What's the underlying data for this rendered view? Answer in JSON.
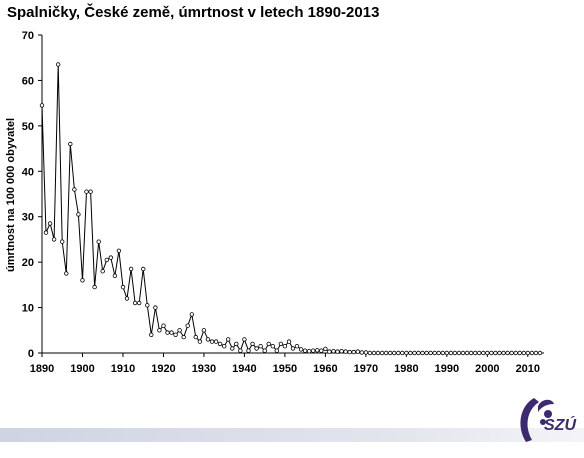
{
  "chart_data": {
    "type": "line",
    "title": "Spalničky, České země, úmrtnost v letech 1890-2013",
    "xlabel": "",
    "ylabel": "úmrtnost na 100 000 obyvatel",
    "xlim": [
      1890,
      2014
    ],
    "ylim": [
      0,
      70
    ],
    "x_ticks": [
      1890,
      1900,
      1910,
      1920,
      1930,
      1940,
      1950,
      1960,
      1970,
      1980,
      1990,
      2000,
      2010
    ],
    "y_ticks": [
      0,
      10,
      20,
      30,
      40,
      50,
      60,
      70
    ],
    "grid": false,
    "legend": "none",
    "line_color": "#000000",
    "marker": "open-circle",
    "series": [
      {
        "x": [
          1890,
          1891,
          1892,
          1893,
          1894,
          1895,
          1896,
          1897,
          1898,
          1899,
          1900,
          1901,
          1902,
          1903,
          1904,
          1905,
          1906,
          1907,
          1908,
          1909,
          1910,
          1911,
          1912,
          1913,
          1914,
          1915,
          1916,
          1917,
          1918,
          1919,
          1920,
          1921,
          1922,
          1923,
          1924,
          1925,
          1926,
          1927,
          1928,
          1929,
          1930,
          1931,
          1932,
          1933,
          1934,
          1935,
          1936,
          1937,
          1938,
          1939,
          1940,
          1941,
          1942,
          1943,
          1944,
          1945,
          1946,
          1947,
          1948,
          1949,
          1950,
          1951,
          1952,
          1953,
          1954,
          1955,
          1956,
          1957,
          1958,
          1959,
          1960,
          1961,
          1962,
          1963,
          1964,
          1965,
          1966,
          1967,
          1968,
          1969,
          1970,
          1971,
          1972,
          1973,
          1974,
          1975,
          1976,
          1977,
          1978,
          1979,
          1980,
          1981,
          1982,
          1983,
          1984,
          1985,
          1986,
          1987,
          1988,
          1989,
          1990,
          1991,
          1992,
          1993,
          1994,
          1995,
          1996,
          1997,
          1998,
          1999,
          2000,
          2001,
          2002,
          2003,
          2004,
          2005,
          2006,
          2007,
          2008,
          2009,
          2010,
          2011,
          2012,
          2013
        ],
        "values": [
          54.5,
          26.5,
          28.5,
          25.0,
          63.5,
          24.5,
          17.5,
          46.0,
          36.0,
          30.5,
          16.0,
          35.5,
          35.5,
          14.5,
          24.5,
          18.0,
          20.5,
          21.0,
          17.0,
          22.5,
          14.5,
          12.0,
          18.5,
          11.0,
          11.0,
          18.5,
          10.5,
          4.0,
          10.0,
          5.0,
          6.0,
          4.5,
          4.5,
          4.0,
          5.0,
          3.5,
          6.0,
          8.5,
          3.5,
          2.5,
          5.0,
          3.0,
          2.5,
          2.5,
          2.0,
          1.5,
          3.0,
          1.0,
          2.0,
          0.5,
          3.0,
          0.5,
          2.0,
          1.0,
          1.5,
          0.5,
          2.0,
          1.5,
          0.5,
          2.0,
          1.5,
          2.5,
          1.0,
          1.5,
          0.8,
          0.5,
          0.4,
          0.5,
          0.6,
          0.5,
          0.9,
          0.3,
          0.4,
          0.3,
          0.4,
          0.3,
          0.2,
          0.2,
          0.3,
          0.1,
          0.1,
          0.0,
          0.0,
          0.0,
          0.0,
          0.0,
          0.0,
          0.0,
          0.0,
          0.0,
          0.0,
          0.0,
          0.0,
          0.0,
          0.0,
          0.0,
          0.0,
          0.0,
          0.0,
          0.0,
          0.0,
          0.0,
          0.0,
          0.0,
          0.0,
          0.0,
          0.0,
          0.0,
          0.0,
          0.0,
          0.0,
          0.0,
          0.0,
          0.0,
          0.0,
          0.0,
          0.0,
          0.0,
          0.0,
          0.0,
          0.0,
          0.0,
          0.0,
          0.0
        ]
      }
    ]
  },
  "logo": {
    "text": "SZÚ",
    "color": "#3d2a6e"
  }
}
